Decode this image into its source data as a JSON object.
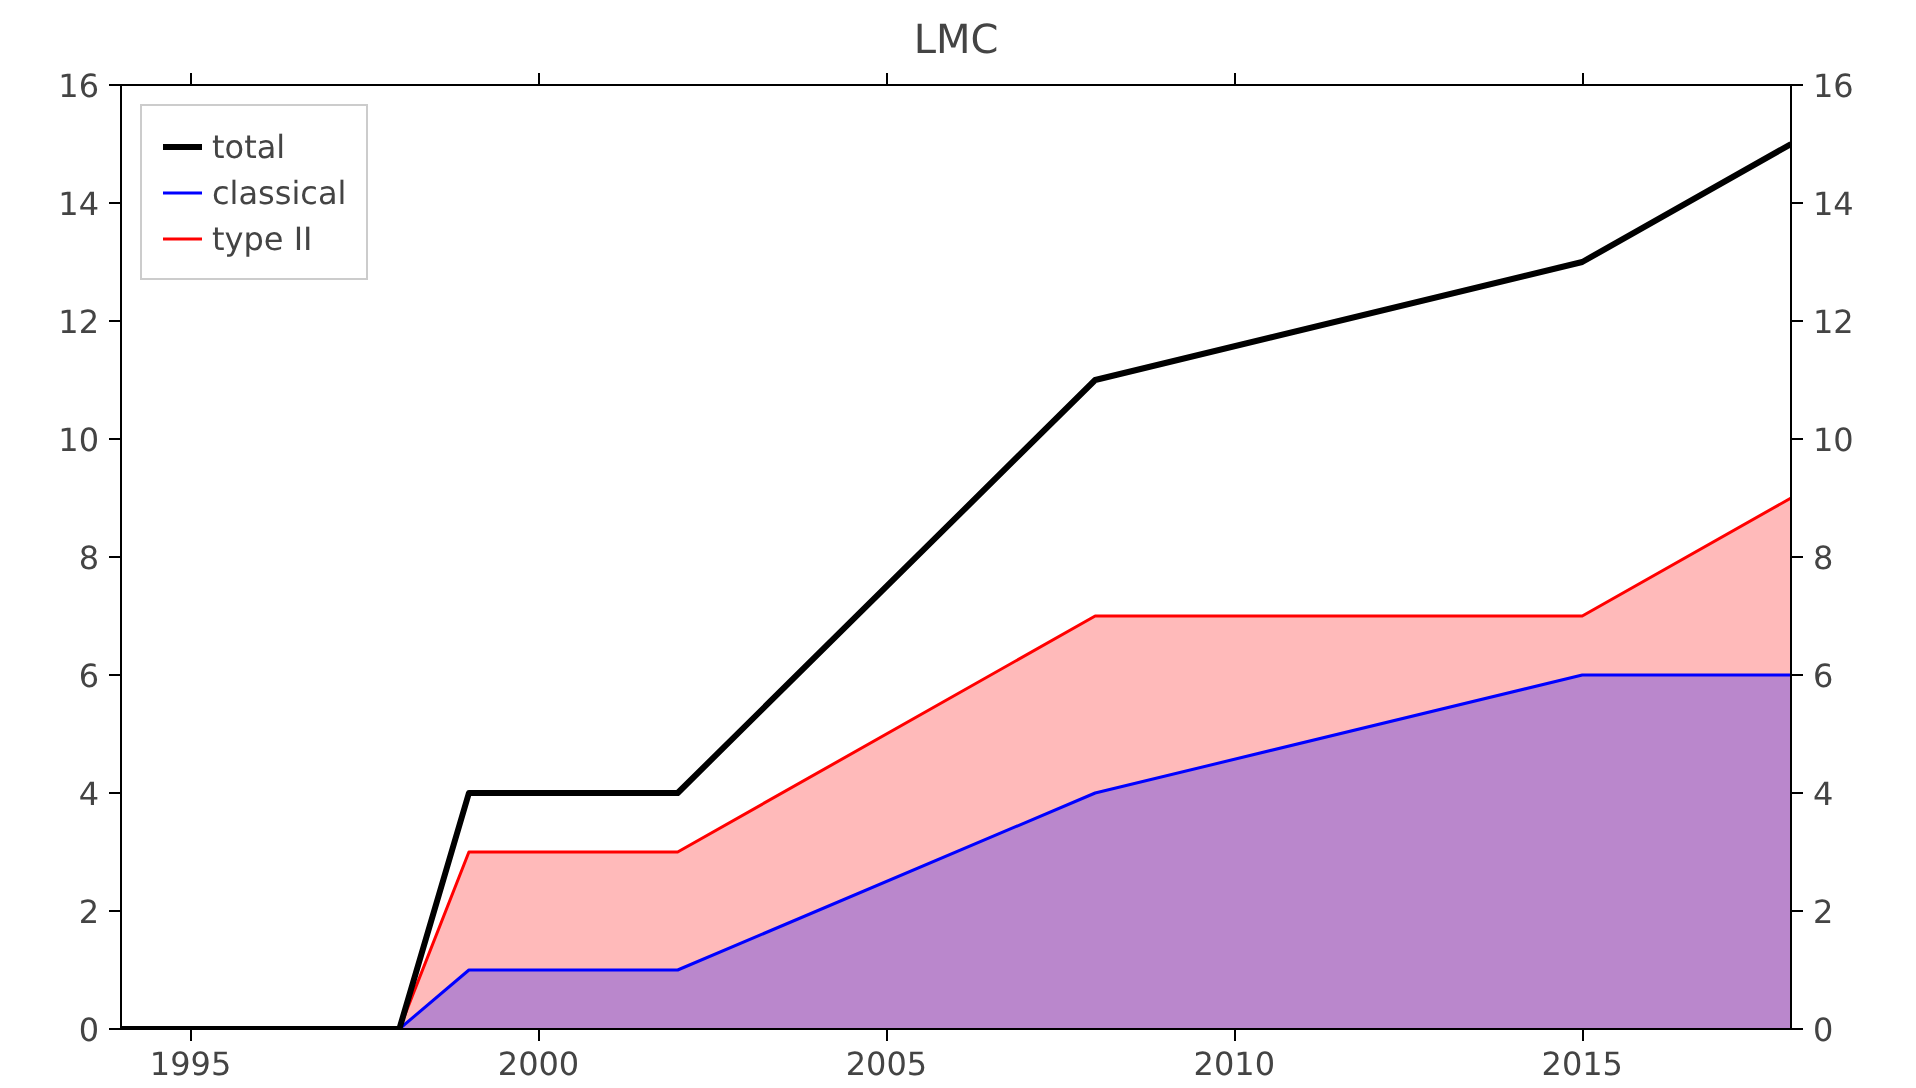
{
  "chart_data": {
    "type": "area",
    "title": "LMC",
    "x": [
      1994,
      1998,
      1999,
      2002,
      2008,
      2015,
      2018
    ],
    "series": [
      {
        "name": "total",
        "type": "line",
        "color": "#000000",
        "values": [
          0,
          0,
          4,
          4,
          11,
          13,
          15
        ]
      },
      {
        "name": "classical",
        "color": "#0000ff",
        "values": [
          0,
          0,
          1,
          1,
          4,
          6,
          6
        ]
      },
      {
        "name": "type II",
        "color": "#ff0000",
        "values": [
          0,
          0,
          3,
          3,
          7,
          7,
          9
        ]
      }
    ],
    "xlim": [
      1994,
      2018
    ],
    "xticks": [
      1995,
      2000,
      2005,
      2010,
      2015
    ],
    "ylim": [
      0,
      16
    ],
    "yticks": [
      0,
      2,
      4,
      6,
      8,
      10,
      12,
      14,
      16
    ],
    "y2lim": [
      0,
      16
    ],
    "y2ticks": [
      0,
      2,
      4,
      6,
      8,
      10,
      12,
      14,
      16
    ],
    "legend": "top left",
    "grid": false
  }
}
